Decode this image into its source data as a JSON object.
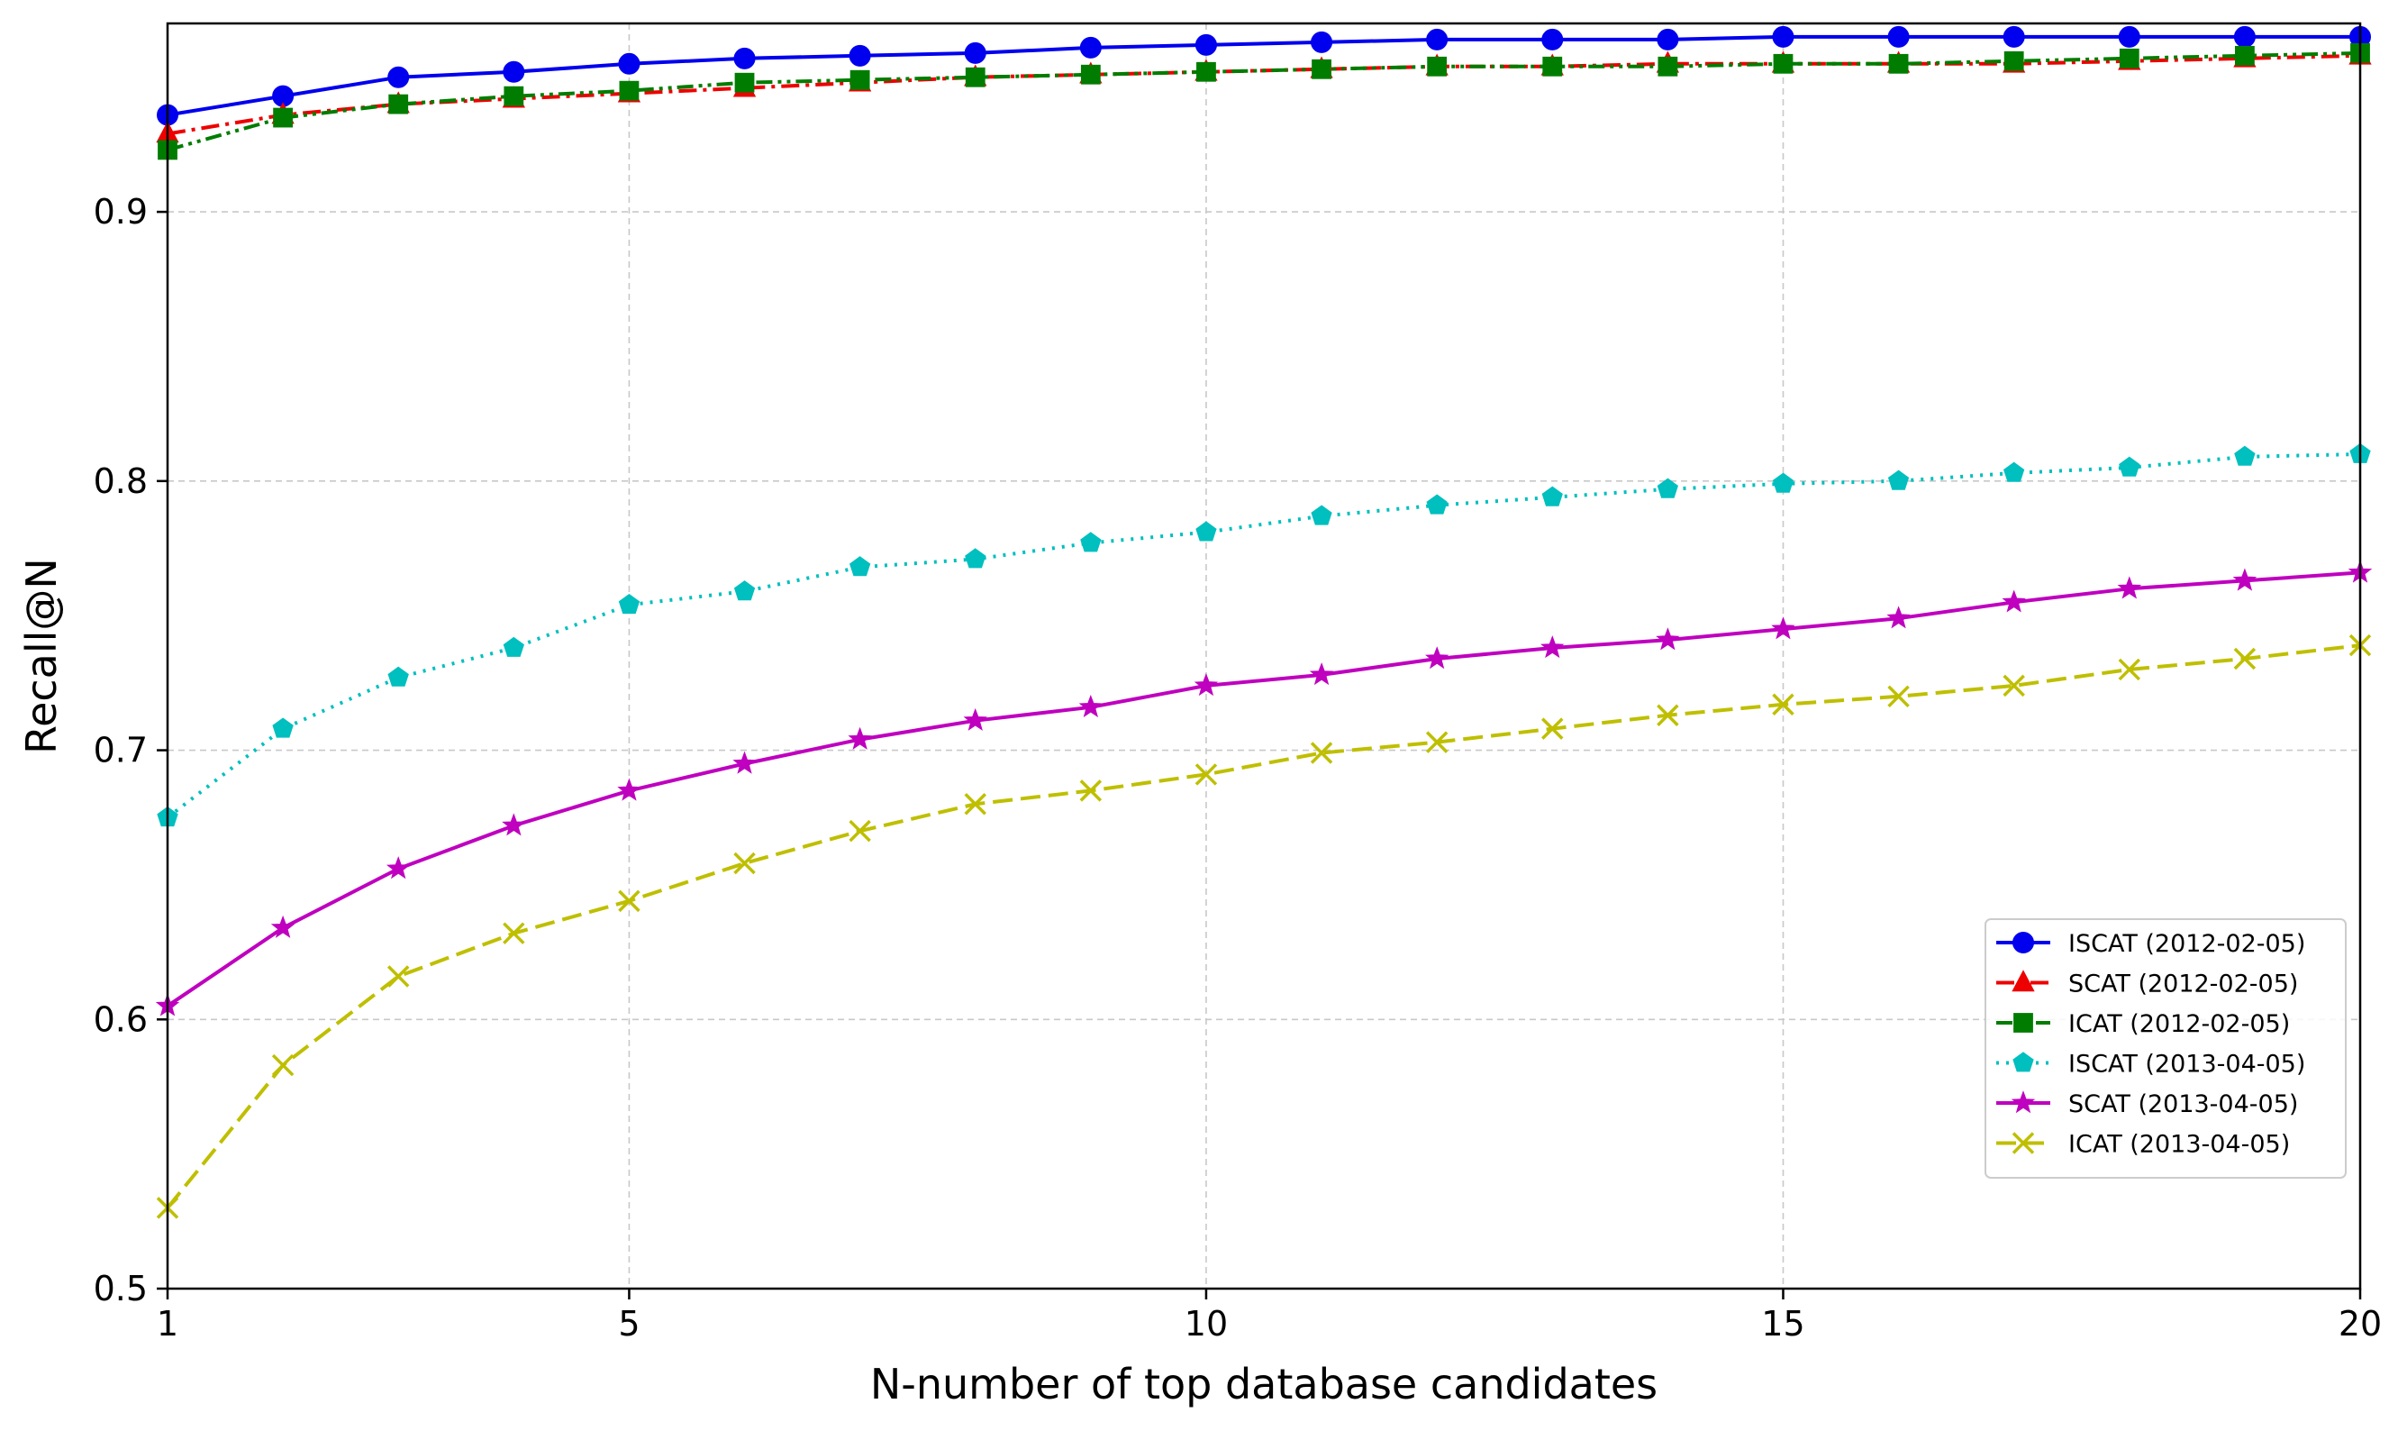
{
  "chart_data": {
    "type": "line",
    "title": "",
    "xlabel": "N-number of top database candidates",
    "ylabel": "Recall@N",
    "xlim": [
      1,
      20
    ],
    "ylim": [
      0.5,
      0.97
    ],
    "xticks": [
      1,
      5,
      10,
      15,
      20
    ],
    "yticks": [
      0.5,
      0.6,
      0.7,
      0.8,
      0.9
    ],
    "xtick_labels": [
      "1",
      "5",
      "10",
      "15",
      "20"
    ],
    "ytick_labels": [
      "0.5",
      "0.6",
      "0.7",
      "0.8",
      "0.9"
    ],
    "grid": true,
    "legend_position": "lower-right",
    "x": [
      1,
      2,
      3,
      4,
      5,
      6,
      7,
      8,
      9,
      10,
      11,
      12,
      13,
      14,
      15,
      16,
      17,
      18,
      19,
      20
    ],
    "series": [
      {
        "name": "ISCAT (2012-02-05)",
        "color": "#0000ee",
        "line_style": "solid",
        "marker": "circle",
        "values": [
          0.936,
          0.943,
          0.95,
          0.952,
          0.955,
          0.957,
          0.958,
          0.959,
          0.961,
          0.962,
          0.963,
          0.964,
          0.964,
          0.964,
          0.965,
          0.965,
          0.965,
          0.965,
          0.965,
          0.965
        ]
      },
      {
        "name": "SCAT (2012-02-05)",
        "color": "#ee0000",
        "line_style": "dashdot",
        "marker": "triangle",
        "values": [
          0.929,
          0.936,
          0.94,
          0.942,
          0.944,
          0.946,
          0.948,
          0.95,
          0.951,
          0.952,
          0.953,
          0.954,
          0.954,
          0.955,
          0.955,
          0.955,
          0.955,
          0.956,
          0.957,
          0.958
        ]
      },
      {
        "name": "ICAT (2012-02-05)",
        "color": "#007d00",
        "line_style": "dashdotdot",
        "marker": "square",
        "values": [
          0.923,
          0.935,
          0.94,
          0.943,
          0.945,
          0.948,
          0.949,
          0.95,
          0.951,
          0.952,
          0.953,
          0.954,
          0.954,
          0.954,
          0.955,
          0.955,
          0.956,
          0.957,
          0.958,
          0.959
        ]
      },
      {
        "name": "ISCAT (2013-04-05)",
        "color": "#00bfbf",
        "line_style": "dotted",
        "marker": "pentagon",
        "values": [
          0.675,
          0.708,
          0.727,
          0.738,
          0.754,
          0.759,
          0.768,
          0.771,
          0.777,
          0.781,
          0.787,
          0.791,
          0.794,
          0.797,
          0.799,
          0.8,
          0.803,
          0.805,
          0.809,
          0.81
        ]
      },
      {
        "name": "SCAT (2013-04-05)",
        "color": "#bf00bf",
        "line_style": "solid",
        "marker": "star",
        "values": [
          0.605,
          0.634,
          0.656,
          0.672,
          0.685,
          0.695,
          0.704,
          0.711,
          0.716,
          0.724,
          0.728,
          0.734,
          0.738,
          0.741,
          0.745,
          0.749,
          0.755,
          0.76,
          0.763,
          0.766
        ]
      },
      {
        "name": "ICAT (2013-04-05)",
        "color": "#bfbf00",
        "line_style": "dashed",
        "marker": "x",
        "values": [
          0.53,
          0.583,
          0.616,
          0.632,
          0.644,
          0.658,
          0.67,
          0.68,
          0.685,
          0.691,
          0.699,
          0.703,
          0.708,
          0.713,
          0.717,
          0.72,
          0.724,
          0.73,
          0.734,
          0.739
        ]
      }
    ]
  }
}
